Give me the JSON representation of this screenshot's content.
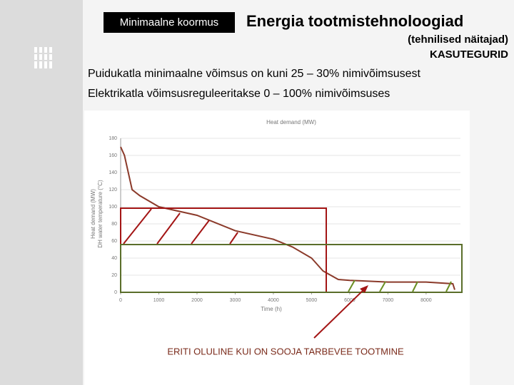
{
  "slide": {
    "label_box": "Minimaalne koormus",
    "title": "Energia tootmistehnoloogiad",
    "subtitle": "(tehnilised näitajad)",
    "subtitle2": "KASUTEGURID",
    "bullets": [
      "Puidukatla minimaalne võimsus on kuni 25 – 30% nimivõimsusest",
      "Elektrikatla võimsusreguleeritakse 0 – 100% nimivõimsuses"
    ],
    "note": "ERITI OLULINE KUI ON SOOJA TARBEVEE TOOTMINE"
  },
  "chart_data": {
    "type": "line",
    "title": "Heat demand (MW)",
    "xlabel": "Time (h)",
    "ylabel": [
      "Heat demand (MW)",
      "DH water temperature (°C)"
    ],
    "x": [
      0,
      100,
      200,
      300,
      500,
      1000,
      2000,
      3000,
      4000,
      4500,
      5000,
      5300,
      5700,
      6000,
      7000,
      8000,
      8700,
      8750
    ],
    "series": [
      {
        "name": "Heat demand",
        "color": "#8b3a2a",
        "values": [
          170,
          160,
          140,
          120,
          113,
          100,
          90,
          72,
          62,
          53,
          40,
          25,
          15,
          14,
          12,
          12,
          10,
          3
        ]
      }
    ],
    "xlim": [
      0,
      8900
    ],
    "xticks": [
      0,
      1000,
      2000,
      3000,
      4000,
      5000,
      6000,
      7000,
      8000
    ],
    "ylim": [
      0,
      180
    ],
    "yticks": [
      0,
      20,
      40,
      60,
      80,
      100,
      120,
      140,
      160,
      180
    ],
    "grid": true
  }
}
